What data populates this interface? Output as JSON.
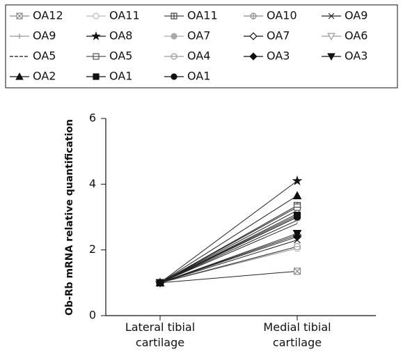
{
  "chart_data": {
    "type": "line",
    "y_label": "Ob-Rb mRNA relative quantification",
    "categories": [
      "Lateral tibial cartilage",
      "Medial tibial cartilage"
    ],
    "ylim": [
      0,
      6
    ],
    "yticks": [
      0,
      2,
      4,
      6
    ],
    "series": [
      {
        "name": "OA12",
        "color": "#888888",
        "marker": "square-x",
        "filled": false,
        "values": [
          1,
          1.35
        ]
      },
      {
        "name": "OA11",
        "color": "#bbbbbb",
        "marker": "circle",
        "filled": false,
        "values": [
          1,
          2.05
        ]
      },
      {
        "name": "OA11",
        "color": "#444444",
        "marker": "square-plus",
        "filled": false,
        "values": [
          1,
          3.35
        ]
      },
      {
        "name": "OA10",
        "color": "#888888",
        "marker": "circle-plus",
        "filled": false,
        "values": [
          1,
          3.1
        ]
      },
      {
        "name": "OA9",
        "color": "#222222",
        "marker": "cross",
        "filled": false,
        "values": [
          1,
          2.3
        ]
      },
      {
        "name": "OA9",
        "color": "#999999",
        "marker": "plus",
        "filled": false,
        "values": [
          1,
          2.9
        ]
      },
      {
        "name": "OA8",
        "color": "#111111",
        "marker": "star",
        "filled": true,
        "values": [
          1,
          4.1
        ]
      },
      {
        "name": "OA7",
        "color": "#aaaaaa",
        "marker": "circle",
        "filled": true,
        "values": [
          1,
          3.0
        ]
      },
      {
        "name": "OA7",
        "color": "#111111",
        "marker": "diamond",
        "filled": false,
        "values": [
          1,
          2.45
        ]
      },
      {
        "name": "OA6",
        "color": "#999999",
        "marker": "triangle-down",
        "filled": false,
        "values": [
          1,
          3.2
        ]
      },
      {
        "name": "OA5",
        "color": "#111111",
        "marker": "none",
        "filled": false,
        "values": [
          1,
          2.8
        ]
      },
      {
        "name": "OA5",
        "color": "#555555",
        "marker": "square-minus",
        "filled": false,
        "values": [
          1,
          3.3
        ]
      },
      {
        "name": "OA4",
        "color": "#999999",
        "marker": "circle-minus",
        "filled": false,
        "values": [
          1,
          2.1
        ]
      },
      {
        "name": "OA3",
        "color": "#111111",
        "marker": "diamond",
        "filled": true,
        "values": [
          1,
          2.4
        ]
      },
      {
        "name": "OA3",
        "color": "#111111",
        "marker": "triangle-down",
        "filled": true,
        "values": [
          1,
          2.5
        ]
      },
      {
        "name": "OA2",
        "color": "#111111",
        "marker": "triangle",
        "filled": true,
        "values": [
          1,
          3.65
        ]
      },
      {
        "name": "OA1",
        "color": "#111111",
        "marker": "square",
        "filled": true,
        "values": [
          1,
          3.05
        ]
      },
      {
        "name": "OA1",
        "color": "#111111",
        "marker": "circle",
        "filled": true,
        "values": [
          1,
          3.0
        ]
      }
    ]
  }
}
